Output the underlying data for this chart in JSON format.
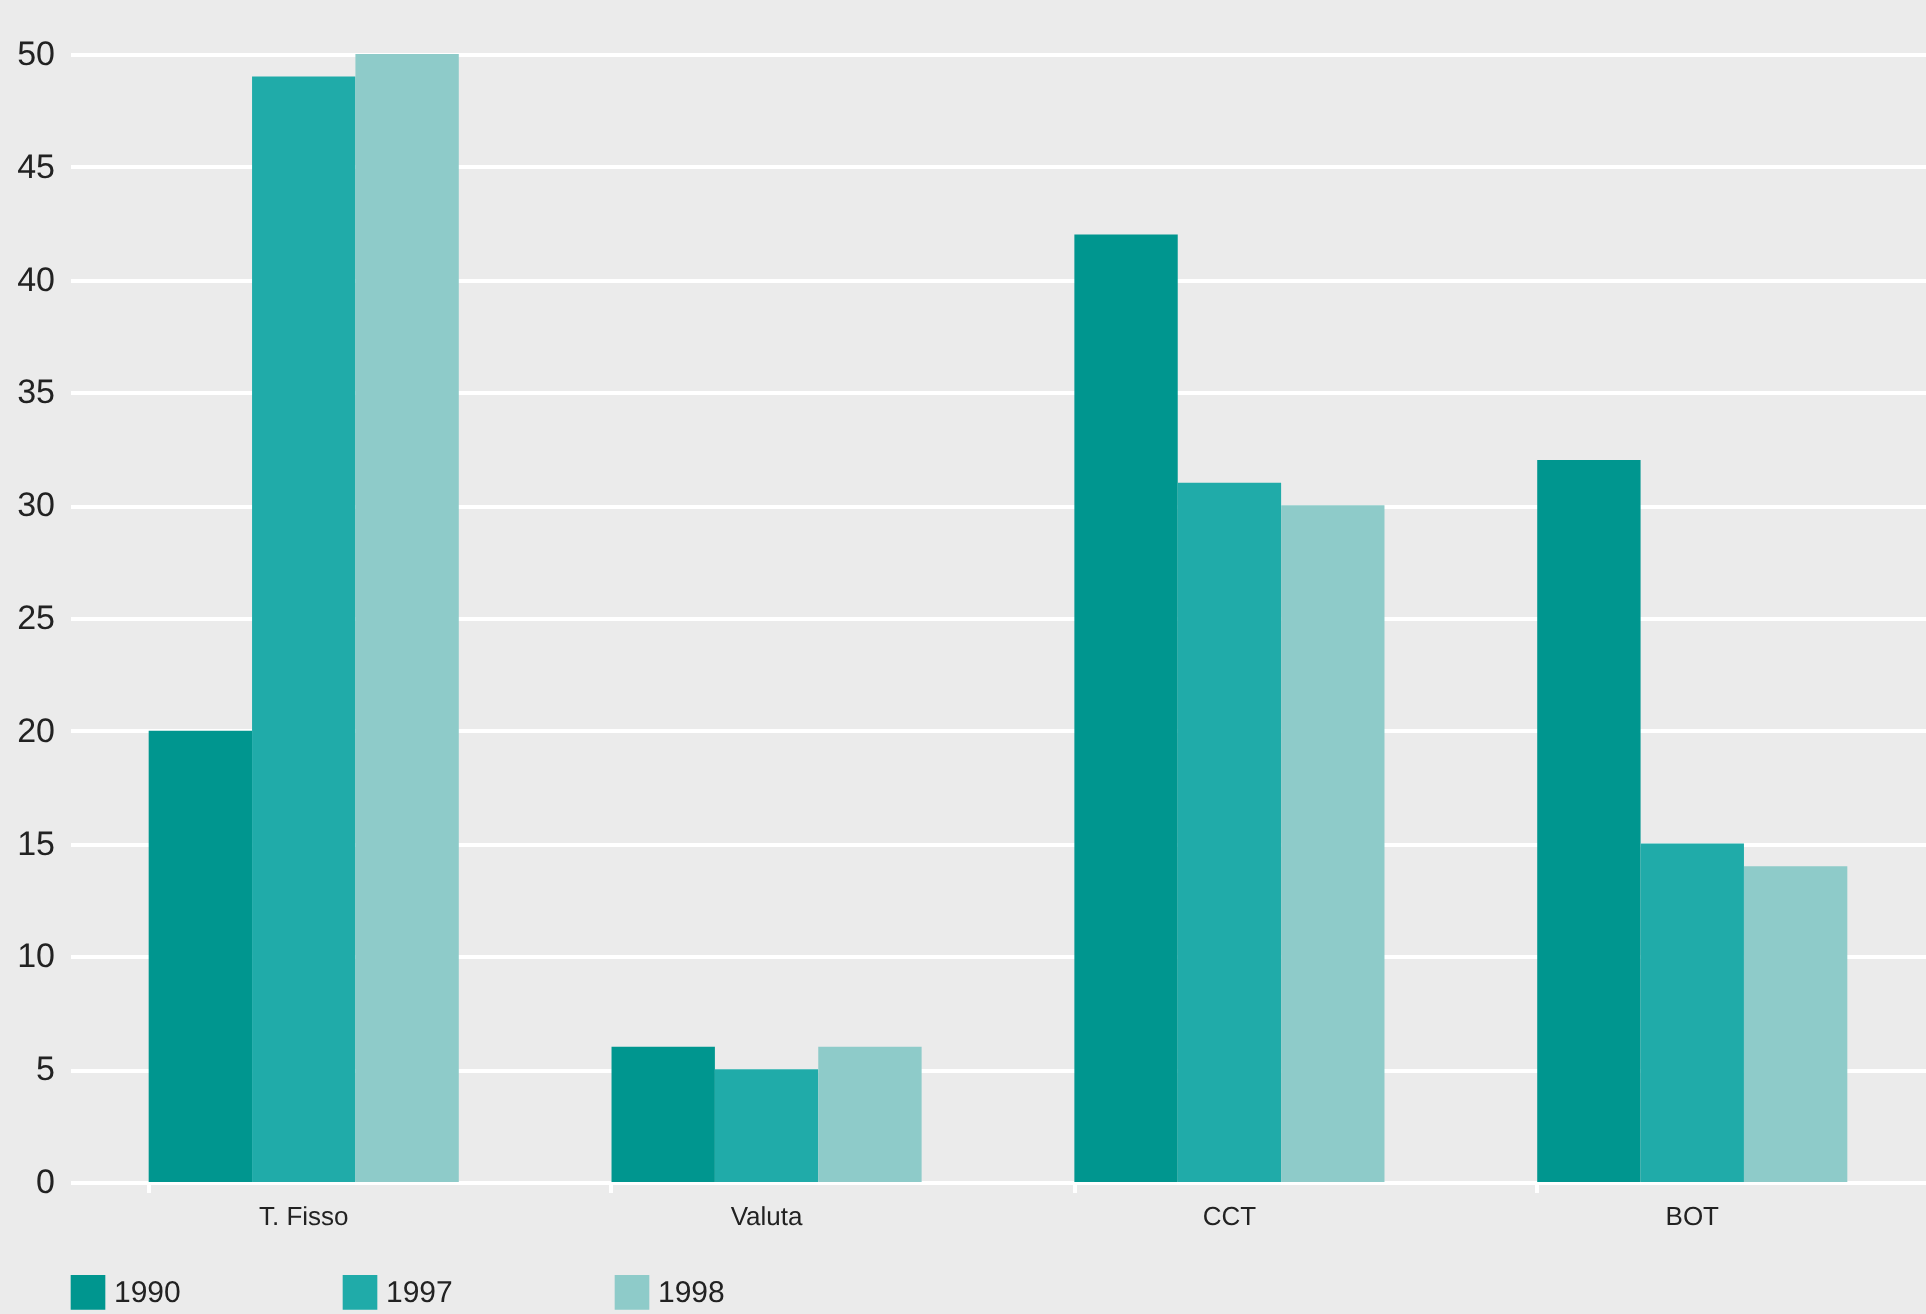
{
  "chart_data": {
    "type": "bar",
    "categories": [
      "T. Fisso",
      "Valuta",
      "CCT",
      "BOT"
    ],
    "series": [
      {
        "name": "1990",
        "color": "#00968f",
        "values": [
          20,
          6,
          42,
          32
        ]
      },
      {
        "name": "1997",
        "color": "#20aba9",
        "values": [
          49,
          5,
          31,
          15
        ]
      },
      {
        "name": "1998",
        "color": "#8ecbc9",
        "values": [
          50,
          6,
          30,
          14
        ]
      }
    ],
    "ylim": [
      0,
      50
    ],
    "yticks": [
      0,
      5,
      10,
      15,
      20,
      25,
      30,
      35,
      40,
      45,
      50
    ],
    "grid": "y",
    "legend": "bottom"
  }
}
